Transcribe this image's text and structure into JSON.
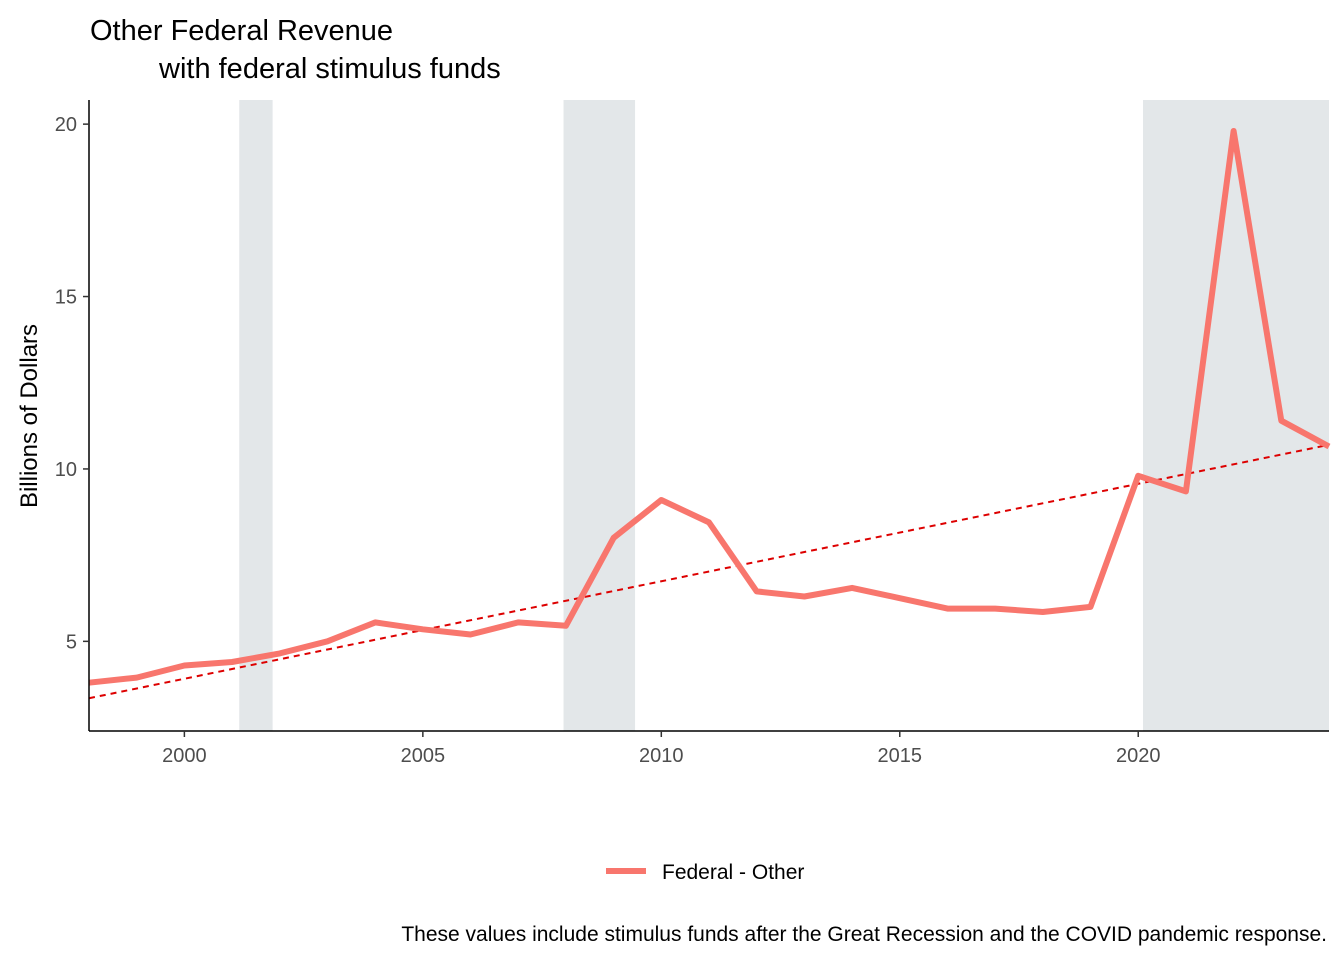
{
  "chart_data": {
    "type": "line",
    "title": "Other Federal Revenue",
    "subtitle": "with federal stimulus funds",
    "xlabel": "",
    "ylabel": "Billions of Dollars",
    "xlim": [
      1998,
      2024
    ],
    "ylim": [
      2.4,
      20.7
    ],
    "x_ticks": [
      2000,
      2005,
      2010,
      2015,
      2020
    ],
    "y_ticks": [
      5,
      10,
      15,
      20
    ],
    "grid": false,
    "legend_position": "bottom",
    "recession_bands": [
      {
        "start": 2001.15,
        "end": 2001.85
      },
      {
        "start": 2007.95,
        "end": 2009.45
      },
      {
        "start": 2020.1,
        "end": 2024
      }
    ],
    "series": [
      {
        "name": "Federal - Other",
        "color": "#f8766d",
        "x": [
          1998,
          1999,
          2000,
          2001,
          2002,
          2003,
          2004,
          2005,
          2006,
          2007,
          2008,
          2009,
          2010,
          2011,
          2012,
          2013,
          2014,
          2015,
          2016,
          2017,
          2018,
          2019,
          2020,
          2021,
          2022,
          2023,
          2024
        ],
        "values": [
          3.8,
          3.95,
          4.3,
          4.4,
          4.65,
          5.0,
          5.55,
          5.35,
          5.2,
          5.55,
          5.45,
          8.0,
          9.1,
          8.45,
          6.45,
          6.3,
          6.55,
          6.25,
          5.95,
          5.95,
          5.85,
          6.0,
          9.8,
          9.35,
          19.8,
          11.4,
          10.65
        ]
      }
    ],
    "trend_line": {
      "color": "#dd0000",
      "style": "dashed",
      "start": {
        "x": 1998,
        "y": 3.35
      },
      "end": {
        "x": 2024,
        "y": 10.7
      }
    },
    "caption": "These values include stimulus funds after the Great Recession and the COVID pandemic response.",
    "colors": {
      "band": "#e3e7e9",
      "axis": "#000000",
      "tick_text": "#4d4d4d"
    }
  }
}
